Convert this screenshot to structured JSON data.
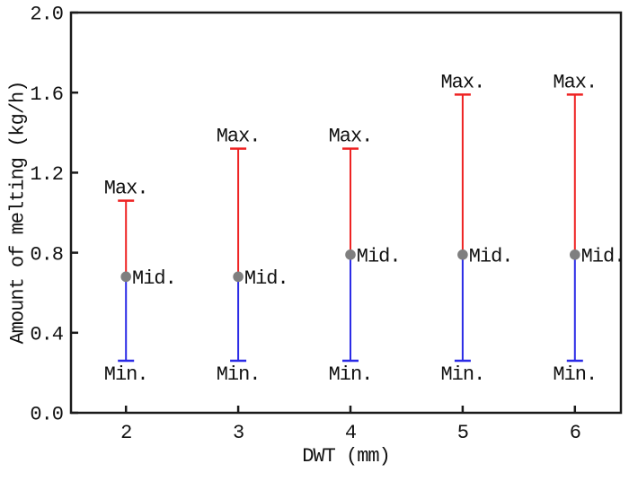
{
  "chart_data": {
    "type": "errorbar",
    "title": "",
    "xlabel": "DWT (mm)",
    "ylabel": "Amount of melting (kg/h)",
    "x": [
      2,
      3,
      4,
      5,
      6
    ],
    "series": [
      {
        "name": "Max.",
        "role": "max",
        "color": "#ee2222",
        "values": [
          1.06,
          1.32,
          1.32,
          1.59,
          1.59
        ]
      },
      {
        "name": "Mid.",
        "role": "mid",
        "color": "#7f7f7f",
        "values": [
          0.68,
          0.68,
          0.79,
          0.79,
          0.79
        ]
      },
      {
        "name": "Min.",
        "role": "min",
        "color": "#2a2ae6",
        "values": [
          0.26,
          0.26,
          0.26,
          0.26,
          0.26
        ]
      }
    ],
    "point_labels": {
      "max": "Max.",
      "mid": "Mid.",
      "min": "Min."
    },
    "xlim": [
      1.51,
      6.41
    ],
    "ylim": [
      0.0,
      2.0
    ],
    "xticks": {
      "values": [
        2,
        3,
        4,
        5,
        6
      ],
      "labels": [
        "2",
        "3",
        "4",
        "5",
        "6"
      ]
    },
    "yticks": {
      "values": [
        0.0,
        0.4,
        0.8,
        1.2,
        1.6,
        2.0
      ],
      "labels": [
        "0.0",
        "0.4",
        "0.8",
        "1.2",
        "1.6",
        "2.0"
      ]
    },
    "grid": false,
    "legend": "none",
    "axis_color": "#1a1a1a",
    "text_color": "#111111"
  }
}
